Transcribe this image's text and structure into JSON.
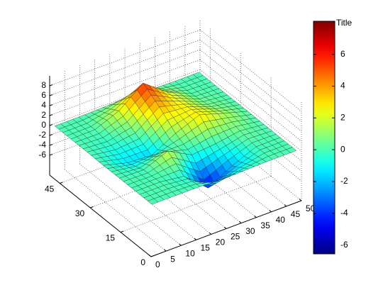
{
  "chart_data": {
    "type": "surface",
    "x": [
      1,
      9,
      17,
      25,
      33,
      41,
      49
    ],
    "y": [
      1,
      9,
      17,
      25,
      33,
      41,
      49
    ],
    "z": [
      [
        0,
        0,
        -0.03,
        -0.25,
        -0.11,
        0,
        0
      ],
      [
        0,
        0.05,
        -0.59,
        -4.76,
        -2.1,
        -0.06,
        0
      ],
      [
        0,
        -0.13,
        1.85,
        -0.72,
        -0.27,
        0.5,
        0
      ],
      [
        -0.04,
        -1.33,
        -1.65,
        0.98,
        2.94,
        1.41,
        0.03
      ],
      [
        0,
        -0.48,
        0.23,
        3.69,
        2.44,
        0.58,
        0
      ],
      [
        0,
        0.08,
        2.09,
        5.86,
        2.21,
        0.13,
        0
      ],
      [
        0,
        0,
        0.11,
        0.3,
        0.11,
        0,
        0
      ]
    ],
    "xlim": [
      0,
      50
    ],
    "ylim": [
      0,
      50
    ],
    "zlim": [
      -10,
      10
    ],
    "xticks": [
      0,
      5,
      10,
      15,
      20,
      25,
      30,
      35,
      40,
      45,
      50
    ],
    "yticks": [
      0,
      15,
      30,
      45
    ],
    "zticks": [
      -6,
      -4,
      -2,
      0,
      2,
      4,
      6,
      8
    ],
    "colormap": "jet",
    "grid": true,
    "colorbar": {
      "title": "Title",
      "clim": [
        -6.55,
        8.08
      ],
      "ticks": [
        -6,
        -4,
        -2,
        0,
        2,
        4,
        6
      ]
    }
  }
}
